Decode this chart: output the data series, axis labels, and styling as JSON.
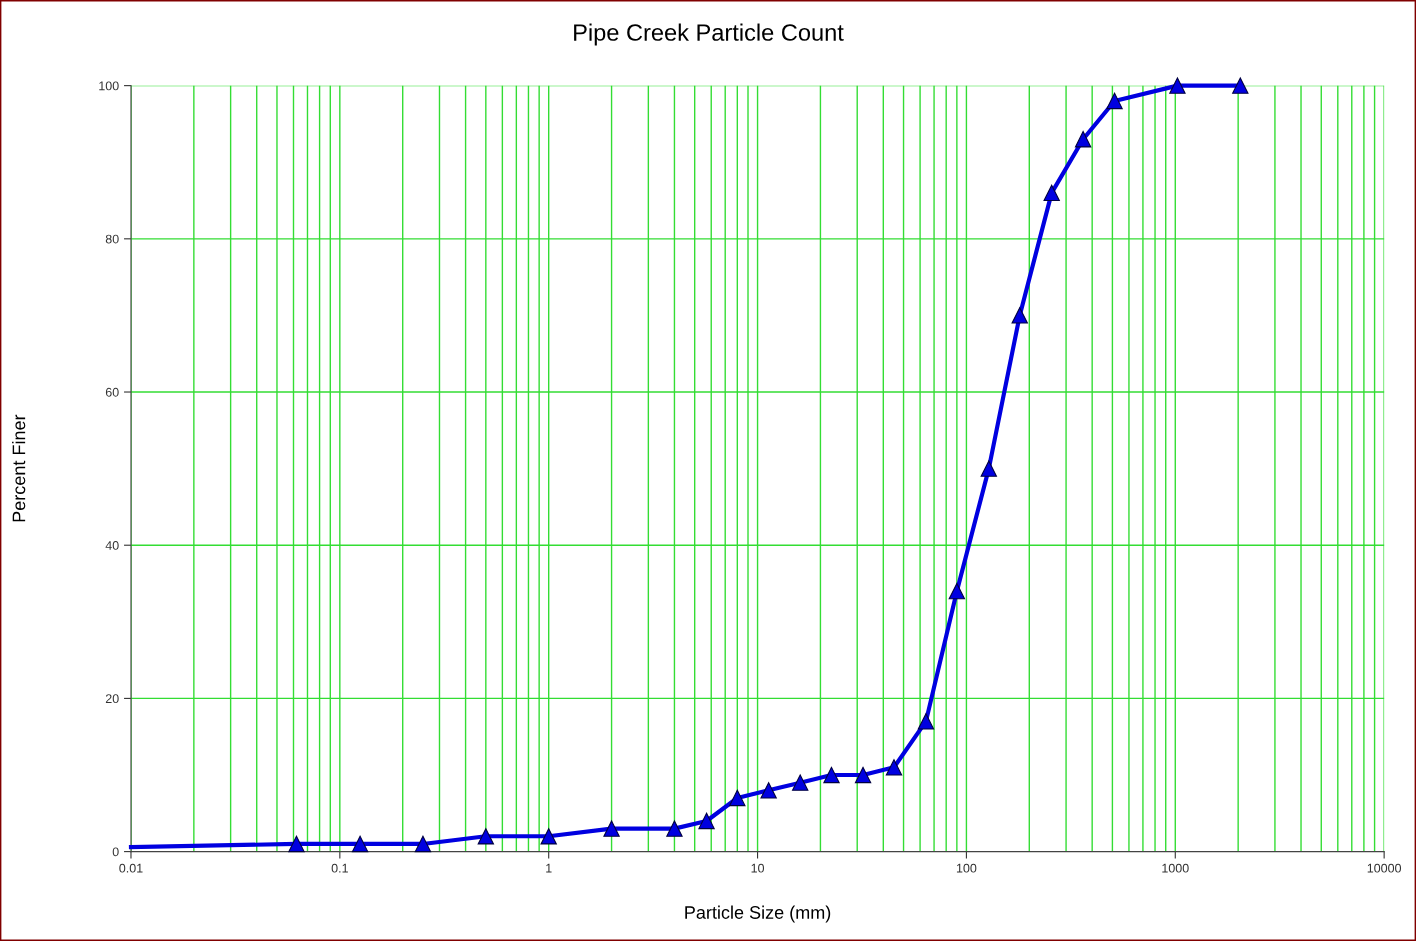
{
  "chart_data": {
    "type": "line",
    "title": "Pipe Creek Particle Count",
    "xlabel": "Particle Size (mm)",
    "ylabel": "Percent Finer",
    "log": "x",
    "grid": true,
    "marker": "triangle",
    "line_style": "solid",
    "xlim": [
      0.01,
      10000
    ],
    "xticks": [
      0.01,
      0.1,
      1,
      10,
      100,
      1000,
      10000
    ],
    "ylim": [
      0,
      100
    ],
    "yticks": [
      0,
      20,
      40,
      60,
      80,
      100
    ],
    "series": [
      {
        "color": "#0000e0",
        "x": [
          0.01,
          0.062,
          0.125,
          0.25,
          0.5,
          1,
          2,
          4,
          5.7,
          8,
          11.3,
          16,
          22.6,
          32,
          45,
          64,
          90,
          128,
          180,
          256,
          362,
          512,
          1024,
          2048
        ],
        "values": [
          0.6,
          1,
          1,
          1,
          2,
          2,
          3,
          3,
          4,
          7,
          8,
          9,
          10,
          10,
          11,
          17,
          34,
          50,
          70,
          86,
          93,
          98,
          100,
          100
        ]
      }
    ]
  }
}
